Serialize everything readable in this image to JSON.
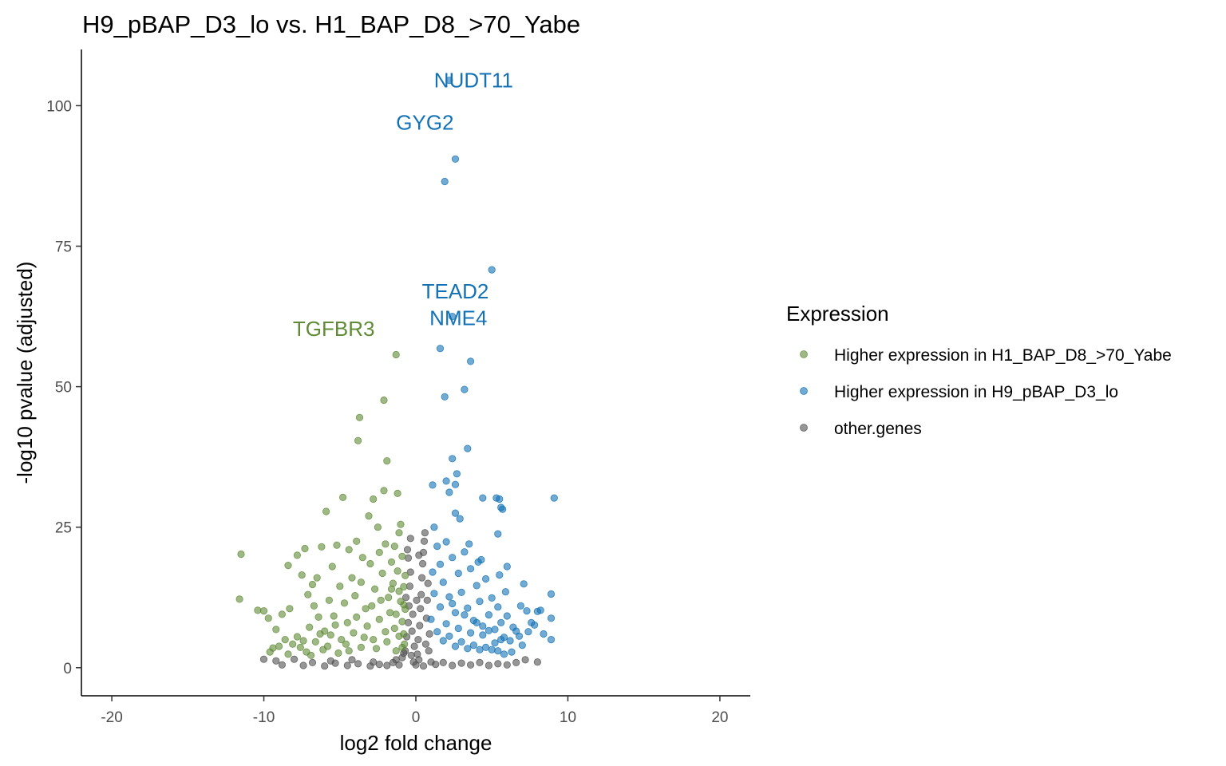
{
  "chart_data": {
    "type": "scatter",
    "title": "H9_pBAP_D3_lo vs. H1_BAP_D8_>70_Yabe",
    "xlabel": "log2 fold change",
    "ylabel": "-log10 pvalue (adjusted)",
    "xlim": [
      -22,
      22
    ],
    "ylim": [
      -5,
      110
    ],
    "x_ticks": [
      -20,
      -10,
      0,
      10,
      20
    ],
    "y_ticks": [
      0,
      25,
      50,
      75,
      100
    ],
    "grid": false,
    "legend": {
      "title": "Expression",
      "placement": "right",
      "entries": [
        {
          "name": "Higher expression in H1_BAP_D8_>70_Yabe",
          "color": "#5f8b35"
        },
        {
          "name": "Higher expression in H9_pBAP_D3_lo",
          "color": "#1372b5"
        },
        {
          "name": "other.genes",
          "color": "#505050"
        }
      ]
    },
    "series": [
      {
        "name": "Higher expression in H1_BAP_D8_>70_Yabe",
        "color": "#5f8b35",
        "points": [
          [
            -11.5,
            20.2
          ],
          [
            -11.6,
            12.2
          ],
          [
            -10.4,
            10.2
          ],
          [
            -10.0,
            10.1
          ],
          [
            -9.7,
            8.8
          ],
          [
            -9.2,
            6.8
          ],
          [
            -9.4,
            3.5
          ],
          [
            -9.6,
            2.8
          ],
          [
            -8.8,
            9.5
          ],
          [
            -8.3,
            10.5
          ],
          [
            -8.4,
            18.2
          ],
          [
            -7.8,
            20.0
          ],
          [
            -7.5,
            16.5
          ],
          [
            -7.3,
            21.2
          ],
          [
            -7.1,
            13.0
          ],
          [
            -6.8,
            14.8
          ],
          [
            -6.5,
            16.0
          ],
          [
            -6.7,
            11.0
          ],
          [
            -6.2,
            21.5
          ],
          [
            -5.9,
            27.8
          ],
          [
            -5.5,
            18.0
          ],
          [
            -5.2,
            21.8
          ],
          [
            -4.8,
            30.3
          ],
          [
            -4.4,
            21.0
          ],
          [
            -3.9,
            22.5
          ],
          [
            -3.5,
            19.6
          ],
          [
            -3.1,
            27.0
          ],
          [
            -2.8,
            30.0
          ],
          [
            -2.5,
            25.0
          ],
          [
            -2.1,
            31.5
          ],
          [
            -1.9,
            36.8
          ],
          [
            -1.2,
            31.0
          ],
          [
            -1.0,
            25.5
          ],
          [
            -1.1,
            24.0
          ],
          [
            -3.7,
            44.5
          ],
          [
            -3.8,
            40.4
          ],
          [
            -2.1,
            47.6
          ],
          [
            -1.3,
            55.7
          ],
          [
            -8.6,
            5.0
          ],
          [
            -8.1,
            4.2
          ],
          [
            -7.6,
            3.6
          ],
          [
            -7.0,
            7.2
          ],
          [
            -6.4,
            9.0
          ],
          [
            -6.0,
            6.5
          ],
          [
            -5.7,
            12.0
          ],
          [
            -5.4,
            9.2
          ],
          [
            -5.0,
            14.5
          ],
          [
            -4.7,
            11.5
          ],
          [
            -4.5,
            8.0
          ],
          [
            -4.2,
            16.0
          ],
          [
            -4.0,
            12.8
          ],
          [
            -3.6,
            15.2
          ],
          [
            -3.3,
            10.5
          ],
          [
            -3.0,
            18.5
          ],
          [
            -2.7,
            14.0
          ],
          [
            -2.4,
            20.5
          ],
          [
            -2.2,
            16.8
          ],
          [
            -2.0,
            22.0
          ],
          [
            -1.8,
            12.5
          ],
          [
            -1.6,
            18.8
          ],
          [
            -1.5,
            15.0
          ],
          [
            -1.4,
            21.6
          ],
          [
            -1.3,
            9.5
          ],
          [
            -1.2,
            17.2
          ],
          [
            -1.1,
            13.6
          ],
          [
            -0.9,
            19.8
          ],
          [
            -0.8,
            11.2
          ],
          [
            -0.7,
            16.4
          ],
          [
            -7.8,
            5.5
          ],
          [
            -7.2,
            2.8
          ],
          [
            -6.6,
            4.6
          ],
          [
            -6.1,
            3.2
          ],
          [
            -5.6,
            5.8
          ],
          [
            -5.1,
            2.6
          ],
          [
            -4.6,
            4.2
          ],
          [
            -4.1,
            6.2
          ],
          [
            -3.6,
            3.6
          ],
          [
            -3.2,
            7.4
          ],
          [
            -2.8,
            5.0
          ],
          [
            -2.4,
            8.6
          ],
          [
            -2.0,
            6.4
          ],
          [
            -1.7,
            9.8
          ],
          [
            -1.4,
            7.0
          ],
          [
            -1.1,
            5.6
          ],
          [
            -0.9,
            8.2
          ],
          [
            -0.8,
            6.0
          ],
          [
            -0.7,
            10.4
          ],
          [
            -0.75,
            4.2
          ],
          [
            -9.0,
            3.8
          ],
          [
            -8.4,
            2.4
          ],
          [
            -7.4,
            4.8
          ],
          [
            -6.9,
            2.2
          ],
          [
            -6.3,
            6.0
          ],
          [
            -5.8,
            3.8
          ],
          [
            -5.3,
            7.6
          ],
          [
            -4.9,
            5.0
          ],
          [
            -4.4,
            3.0
          ],
          [
            -3.9,
            9.0
          ],
          [
            -3.4,
            5.4
          ],
          [
            -2.9,
            11.0
          ],
          [
            -2.6,
            3.4
          ],
          [
            -2.3,
            12.0
          ],
          [
            -1.9,
            4.6
          ],
          [
            -1.6,
            14.0
          ],
          [
            -1.3,
            3.0
          ],
          [
            -1.0,
            11.8
          ],
          [
            -0.9,
            3.6
          ],
          [
            -0.8,
            14.4
          ]
        ]
      },
      {
        "name": "Higher expression in H9_pBAP_D3_lo",
        "color": "#1372b5",
        "points": [
          [
            2.2,
            104.5
          ],
          [
            2.6,
            90.5
          ],
          [
            1.9,
            86.5
          ],
          [
            5.0,
            70.8
          ],
          [
            2.4,
            62.5
          ],
          [
            1.6,
            56.8
          ],
          [
            3.6,
            54.5
          ],
          [
            3.2,
            49.5
          ],
          [
            1.9,
            48.2
          ],
          [
            3.4,
            39.0
          ],
          [
            2.4,
            37.2
          ],
          [
            2.7,
            34.5
          ],
          [
            2.0,
            33.2
          ],
          [
            2.6,
            32.6
          ],
          [
            1.1,
            32.5
          ],
          [
            2.2,
            31.2
          ],
          [
            2.6,
            27.5
          ],
          [
            4.4,
            30.2
          ],
          [
            5.3,
            30.2
          ],
          [
            5.5,
            30.0
          ],
          [
            5.6,
            28.5
          ],
          [
            5.7,
            28.2
          ],
          [
            9.1,
            30.2
          ],
          [
            2.9,
            26.5
          ],
          [
            5.4,
            23.8
          ],
          [
            3.5,
            22.0
          ],
          [
            4.1,
            18.8
          ],
          [
            4.3,
            19.2
          ],
          [
            6.0,
            18.0
          ],
          [
            5.5,
            16.5
          ],
          [
            5.9,
            13.5
          ],
          [
            7.1,
            14.9
          ],
          [
            6.9,
            11.0
          ],
          [
            7.3,
            10.1
          ],
          [
            8.9,
            13.1
          ],
          [
            8.2,
            10.2
          ],
          [
            8.0,
            10.0
          ],
          [
            8.9,
            8.8
          ],
          [
            7.6,
            8.0
          ],
          [
            8.9,
            5.0
          ],
          [
            6.6,
            6.5
          ],
          [
            6.2,
            4.8
          ],
          [
            7.0,
            4.0
          ],
          [
            6.3,
            2.8
          ],
          [
            5.8,
            2.4
          ],
          [
            1.2,
            25.0
          ],
          [
            1.4,
            21.6
          ],
          [
            1.6,
            18.4
          ],
          [
            1.8,
            15.2
          ],
          [
            2.0,
            22.4
          ],
          [
            2.2,
            12.6
          ],
          [
            2.4,
            19.6
          ],
          [
            2.6,
            9.8
          ],
          [
            2.8,
            16.8
          ],
          [
            3.0,
            13.4
          ],
          [
            3.2,
            20.6
          ],
          [
            3.4,
            10.6
          ],
          [
            3.6,
            17.6
          ],
          [
            3.8,
            8.4
          ],
          [
            4.0,
            14.6
          ],
          [
            4.2,
            11.8
          ],
          [
            4.4,
            7.4
          ],
          [
            4.6,
            15.8
          ],
          [
            4.8,
            9.4
          ],
          [
            5.0,
            12.4
          ],
          [
            5.2,
            6.8
          ],
          [
            5.4,
            10.8
          ],
          [
            5.6,
            8.0
          ],
          [
            5.8,
            5.4
          ],
          [
            6.0,
            9.2
          ],
          [
            1.0,
            8.6
          ],
          [
            1.2,
            13.2
          ],
          [
            1.4,
            6.4
          ],
          [
            1.6,
            10.8
          ],
          [
            1.8,
            4.8
          ],
          [
            2.0,
            7.8
          ],
          [
            2.2,
            5.6
          ],
          [
            2.4,
            11.4
          ],
          [
            2.6,
            3.8
          ],
          [
            2.8,
            7.0
          ],
          [
            3.0,
            4.6
          ],
          [
            3.2,
            9.4
          ],
          [
            3.4,
            3.4
          ],
          [
            3.6,
            6.2
          ],
          [
            3.8,
            4.0
          ],
          [
            4.0,
            8.0
          ],
          [
            4.2,
            3.2
          ],
          [
            4.4,
            5.8
          ],
          [
            4.6,
            3.6
          ],
          [
            4.8,
            6.6
          ],
          [
            5.0,
            3.2
          ],
          [
            5.2,
            4.4
          ],
          [
            5.4,
            3.0
          ],
          [
            5.6,
            5.0
          ],
          [
            6.4,
            7.2
          ],
          [
            6.8,
            5.6
          ],
          [
            7.4,
            6.4
          ],
          [
            7.8,
            7.6
          ],
          [
            8.4,
            6.0
          ],
          [
            1.1,
            17.0
          ]
        ]
      },
      {
        "name": "other.genes",
        "color": "#505050",
        "points": [
          [
            -9.2,
            1.2
          ],
          [
            -8.8,
            0.5
          ],
          [
            -7.4,
            0.4
          ],
          [
            -6.8,
            0.9
          ],
          [
            -6.0,
            0.3
          ],
          [
            -5.3,
            0.8
          ],
          [
            -4.5,
            0.4
          ],
          [
            -3.8,
            0.7
          ],
          [
            -3.0,
            0.3
          ],
          [
            -2.4,
            0.6
          ],
          [
            -1.9,
            0.4
          ],
          [
            -1.5,
            0.9
          ],
          [
            -1.1,
            0.5
          ],
          [
            -0.9,
            1.8
          ],
          [
            -0.7,
            3.0
          ],
          [
            -0.6,
            5.5
          ],
          [
            -0.5,
            8.0
          ],
          [
            -0.45,
            11.0
          ],
          [
            -0.4,
            14.5
          ],
          [
            -0.35,
            17.0
          ],
          [
            -0.5,
            19.5
          ],
          [
            -0.55,
            21.0
          ],
          [
            -0.3,
            2.2
          ],
          [
            -0.25,
            6.5
          ],
          [
            -0.2,
            9.5
          ],
          [
            -0.15,
            1.0
          ],
          [
            -0.1,
            3.8
          ],
          [
            0.0,
            0.5
          ],
          [
            0.1,
            2.4
          ],
          [
            0.15,
            5.0
          ],
          [
            0.2,
            1.4
          ],
          [
            0.25,
            7.5
          ],
          [
            0.3,
            10.5
          ],
          [
            0.35,
            13.0
          ],
          [
            0.4,
            16.0
          ],
          [
            0.45,
            18.5
          ],
          [
            0.5,
            20.5
          ],
          [
            0.55,
            22.5
          ],
          [
            0.6,
            24.0
          ],
          [
            0.65,
            4.2
          ],
          [
            0.7,
            8.8
          ],
          [
            0.75,
            12.0
          ],
          [
            0.8,
            15.0
          ],
          [
            0.85,
            3.0
          ],
          [
            0.9,
            6.0
          ],
          [
            1.0,
            1.0
          ],
          [
            1.3,
            0.6
          ],
          [
            1.8,
            0.9
          ],
          [
            2.4,
            0.4
          ],
          [
            3.0,
            0.8
          ],
          [
            3.6,
            0.5
          ],
          [
            4.2,
            0.9
          ],
          [
            4.8,
            0.4
          ],
          [
            5.4,
            0.7
          ],
          [
            6.0,
            0.5
          ],
          [
            6.6,
            0.9
          ],
          [
            7.2,
            1.4
          ],
          [
            8.0,
            1.0
          ],
          [
            -10.0,
            1.5
          ],
          [
            -8.0,
            1.5
          ],
          [
            -5.6,
            1.2
          ],
          [
            -4.2,
            1.4
          ],
          [
            -2.8,
            1.0
          ],
          [
            -1.3,
            1.4
          ],
          [
            0.5,
            0.3
          ],
          [
            -0.8,
            2.6
          ],
          [
            -0.65,
            12.5
          ],
          [
            -0.35,
            23.0
          ],
          [
            0.2,
            20.0
          ],
          [
            0.05,
            12.0
          ]
        ]
      }
    ],
    "annotations": [
      {
        "text": "NUDT11",
        "x": 3.8,
        "y": 104.5,
        "color": "#1372b5"
      },
      {
        "text": "GYG2",
        "x": 0.6,
        "y": 97.0,
        "color": "#1372b5"
      },
      {
        "text": "TEAD2",
        "x": 2.6,
        "y": 67.0,
        "color": "#1372b5"
      },
      {
        "text": "NME4",
        "x": 2.8,
        "y": 62.2,
        "color": "#1372b5"
      },
      {
        "text": "TGFBR3",
        "x": -5.4,
        "y": 60.3,
        "color": "#5f8b35"
      }
    ]
  }
}
